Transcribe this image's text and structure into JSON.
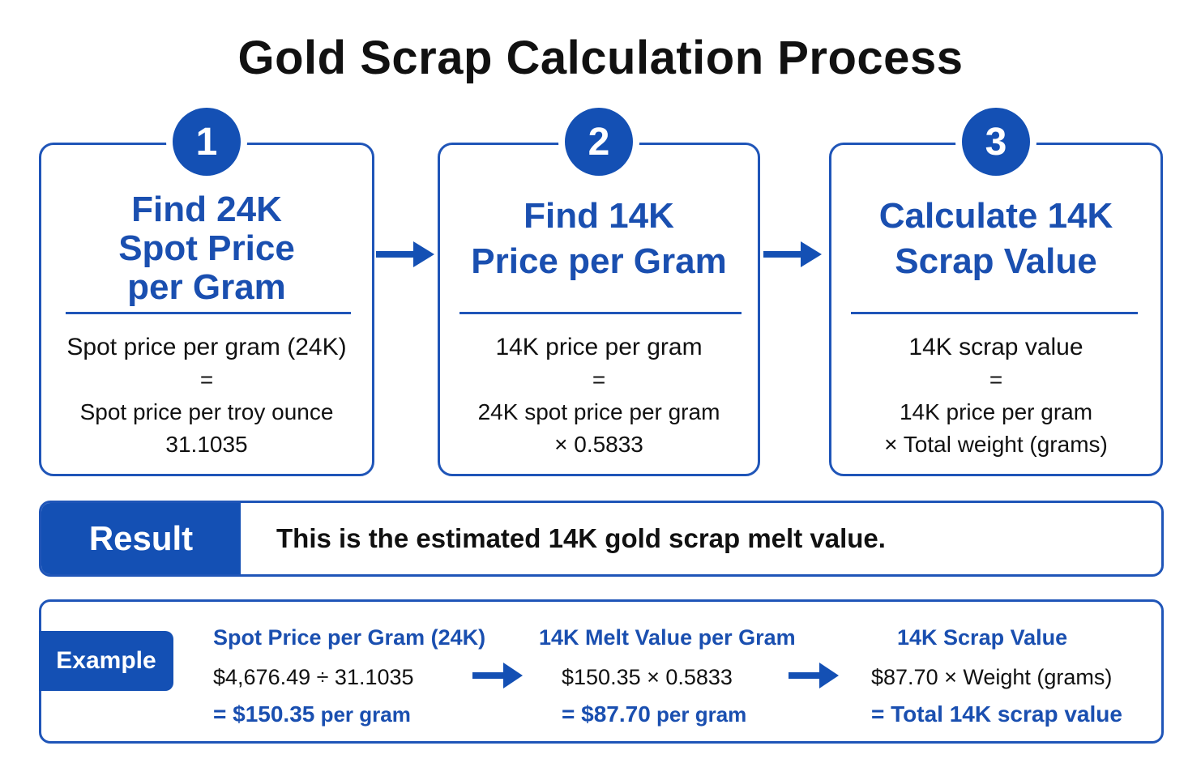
{
  "title": "Gold Scrap Calculation Process",
  "accent_color": "#1450b4",
  "steps": [
    {
      "number": "1",
      "title_lines": [
        "Find 24K",
        "Spot Price",
        "per Gram"
      ],
      "formula_lhs": "Spot price per gram (24K)",
      "equals": "=",
      "formula_rhs_lines": [
        "Spot price per troy ounce",
        "31.1035"
      ]
    },
    {
      "number": "2",
      "title_lines": [
        "Find 14K",
        "Price per Gram"
      ],
      "formula_lhs": "14K price per gram",
      "equals": "=",
      "formula_rhs_lines": [
        "24K spot price per gram",
        "× 0.5833"
      ]
    },
    {
      "number": "3",
      "title_lines": [
        "Calculate 14K",
        "Scrap Value"
      ],
      "formula_lhs": "14K scrap value",
      "equals": "=",
      "formula_rhs_lines": [
        "14K price per gram",
        "× Total weight (grams)"
      ]
    }
  ],
  "result": {
    "label": "Result",
    "text": "This is the estimated 14K gold scrap melt value."
  },
  "example": {
    "label": "Example",
    "columns": [
      {
        "heading": "Spot Price per Gram (24K)",
        "calc": "$4,676.49 ÷ 31.1035",
        "result_main": "= $150.35",
        "result_sub": " per gram"
      },
      {
        "heading": "14K Melt Value per Gram",
        "calc": "$150.35 × 0.5833",
        "result_main": "= $87.70",
        "result_sub": " per gram"
      },
      {
        "heading": "14K Scrap Value",
        "calc": "$87.70 × Weight (grams)",
        "result_main": "= Total 14K scrap value",
        "result_sub": ""
      }
    ]
  }
}
